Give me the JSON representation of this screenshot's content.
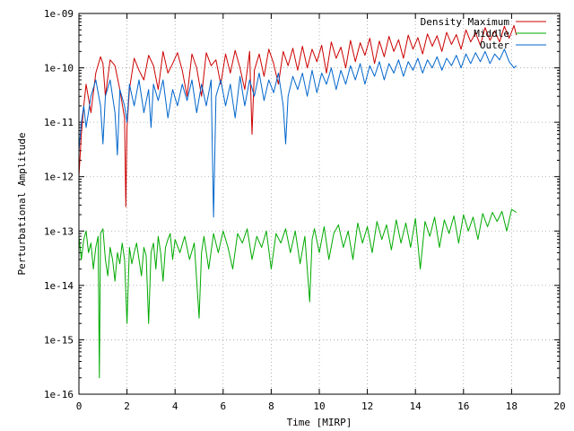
{
  "chart_data": {
    "type": "line",
    "title": "",
    "xlabel": "Time [MIRP]",
    "ylabel": "Perturbational Amplitude",
    "xlim": [
      0,
      20
    ],
    "ylim": [
      1e-16,
      1e-09
    ],
    "yscale": "log",
    "grid": true,
    "legend_position": "top-right",
    "x_ticks": [
      0,
      2,
      4,
      6,
      8,
      10,
      12,
      14,
      16,
      18,
      20
    ],
    "x_tick_labels": [
      "0",
      "2",
      "4",
      "6",
      "8",
      "10",
      "12",
      "14",
      "16",
      "18",
      "20"
    ],
    "y_ticks": [
      1e-16,
      1e-15,
      1e-14,
      1e-13,
      1e-12,
      1e-11,
      1e-10,
      1e-09
    ],
    "y_tick_labels": [
      "1e-16",
      "1e-15",
      "1e-14",
      "1e-13",
      "1e-12",
      "1e-11",
      "1e-10",
      "1e-09"
    ],
    "series": [
      {
        "name": "Density Maximum",
        "color": "#cc0000",
        "x": [
          0.0,
          0.1,
          0.2,
          0.3,
          0.5,
          0.7,
          0.9,
          1.0,
          1.1,
          1.3,
          1.5,
          1.7,
          1.9,
          1.95,
          2.0,
          2.1,
          2.3,
          2.5,
          2.7,
          2.9,
          3.1,
          3.3,
          3.5,
          3.7,
          3.9,
          4.1,
          4.3,
          4.5,
          4.7,
          4.9,
          5.1,
          5.3,
          5.5,
          5.7,
          5.9,
          6.1,
          6.3,
          6.5,
          6.7,
          6.9,
          7.1,
          7.2,
          7.3,
          7.5,
          7.7,
          7.9,
          8.1,
          8.3,
          8.5,
          8.7,
          8.9,
          9.1,
          9.3,
          9.5,
          9.7,
          9.9,
          10.1,
          10.3,
          10.5,
          10.7,
          10.9,
          11.1,
          11.3,
          11.5,
          11.7,
          11.9,
          12.1,
          12.3,
          12.5,
          12.7,
          12.9,
          13.1,
          13.3,
          13.5,
          13.7,
          13.9,
          14.1,
          14.3,
          14.5,
          14.7,
          14.9,
          15.1,
          15.3,
          15.5,
          15.7,
          15.9,
          16.1,
          16.3,
          16.5,
          16.7,
          16.9,
          17.1,
          17.3,
          17.5,
          17.7,
          17.9,
          18.1,
          18.2
        ],
        "values": [
          1e-12,
          6e-12,
          2e-11,
          5e-11,
          1.5e-11,
          8e-11,
          1.6e-10,
          1.2e-10,
          3e-11,
          1.4e-10,
          1.1e-10,
          4e-11,
          1.2e-11,
          2.8e-13,
          8e-12,
          4e-11,
          1.5e-10,
          9e-11,
          6e-11,
          1.7e-10,
          1.1e-10,
          4e-11,
          2e-10,
          8e-11,
          1.2e-10,
          1.9e-10,
          9e-11,
          3e-11,
          1.8e-10,
          1e-10,
          3e-11,
          1.9e-10,
          1.1e-10,
          1.4e-10,
          5e-11,
          1.8e-10,
          8e-11,
          2.1e-10,
          1e-10,
          4e-11,
          2e-10,
          6e-12,
          9e-11,
          1.8e-10,
          7e-11,
          2.2e-10,
          1.2e-10,
          5e-11,
          2e-10,
          1.1e-10,
          2.3e-10,
          9e-11,
          2.5e-10,
          1e-10,
          2.2e-10,
          1.3e-10,
          2.6e-10,
          8e-11,
          3e-10,
          1.5e-10,
          2.4e-10,
          1e-10,
          3.2e-10,
          1.3e-10,
          2.9e-10,
          1.7e-10,
          3.5e-10,
          1.2e-10,
          3.1e-10,
          1.6e-10,
          3.8e-10,
          2e-10,
          3.3e-10,
          1.5e-10,
          4e-10,
          2.2e-10,
          3.6e-10,
          1.8e-10,
          4.2e-10,
          2.5e-10,
          3.9e-10,
          2e-10,
          4.5e-10,
          2.7e-10,
          4.1e-10,
          2.2e-10,
          5e-10,
          3e-10,
          4.4e-10,
          2.6e-10,
          5.5e-10,
          3.2e-10,
          4.8e-10,
          3e-10,
          5.8e-10,
          3.5e-10,
          6e-10,
          4e-10
        ]
      },
      {
        "name": "Middle",
        "color": "#00aa00",
        "x": [
          0.0,
          0.1,
          0.2,
          0.3,
          0.4,
          0.5,
          0.6,
          0.7,
          0.8,
          0.85,
          0.9,
          1.0,
          1.1,
          1.2,
          1.3,
          1.4,
          1.5,
          1.6,
          1.7,
          1.8,
          1.9,
          2.0,
          2.1,
          2.2,
          2.3,
          2.4,
          2.5,
          2.6,
          2.7,
          2.8,
          2.9,
          3.0,
          3.1,
          3.2,
          3.3,
          3.4,
          3.5,
          3.6,
          3.7,
          3.8,
          3.9,
          4.0,
          4.2,
          4.4,
          4.6,
          4.8,
          5.0,
          5.1,
          5.2,
          5.4,
          5.6,
          5.8,
          6.0,
          6.2,
          6.4,
          6.6,
          6.8,
          7.0,
          7.2,
          7.4,
          7.6,
          7.8,
          8.0,
          8.2,
          8.4,
          8.6,
          8.8,
          9.0,
          9.2,
          9.4,
          9.6,
          9.7,
          9.8,
          10.0,
          10.2,
          10.4,
          10.6,
          10.8,
          11.0,
          11.2,
          11.4,
          11.6,
          11.8,
          12.0,
          12.2,
          12.4,
          12.6,
          12.8,
          13.0,
          13.2,
          13.4,
          13.6,
          13.8,
          14.0,
          14.2,
          14.4,
          14.6,
          14.8,
          15.0,
          15.2,
          15.4,
          15.6,
          15.8,
          16.0,
          16.2,
          16.4,
          16.6,
          16.8,
          17.0,
          17.2,
          17.4,
          17.6,
          17.8,
          18.0,
          18.2
        ],
        "values": [
          8e-14,
          3e-14,
          7e-14,
          1e-13,
          4e-14,
          6e-14,
          2e-14,
          5e-14,
          8e-14,
          2e-16,
          9e-14,
          1.1e-13,
          3e-14,
          1.5e-14,
          5e-14,
          3e-14,
          1.2e-14,
          4e-14,
          2.5e-14,
          6e-14,
          3e-14,
          2e-15,
          5e-14,
          2.5e-14,
          4e-14,
          6e-14,
          3e-14,
          1.5e-14,
          5e-14,
          3.5e-14,
          2e-15,
          4e-14,
          6e-14,
          2e-14,
          8e-14,
          4e-14,
          1.2e-14,
          5e-14,
          7e-14,
          9e-14,
          3e-14,
          7e-14,
          4e-14,
          8e-14,
          3e-14,
          6e-14,
          2.5e-15,
          4e-14,
          8e-14,
          2e-14,
          9e-14,
          4e-14,
          1e-13,
          5e-14,
          2e-14,
          9e-14,
          6e-14,
          1.1e-13,
          3e-14,
          8e-14,
          5e-14,
          1e-13,
          2e-14,
          9e-14,
          6e-14,
          1.1e-13,
          4e-14,
          1e-13,
          2.5e-14,
          8e-14,
          5e-15,
          7e-14,
          1.1e-13,
          4e-14,
          1.2e-13,
          3e-14,
          9e-14,
          1.3e-13,
          5e-14,
          1e-13,
          3e-14,
          1.4e-13,
          6e-14,
          1.2e-13,
          4e-14,
          1.5e-13,
          7e-14,
          1.3e-13,
          4.5e-14,
          1.6e-13,
          6e-14,
          1.4e-13,
          5e-14,
          1.7e-13,
          2e-14,
          1.5e-13,
          8e-14,
          1.8e-13,
          5e-14,
          1.6e-13,
          9e-14,
          1.9e-13,
          6e-14,
          2e-13,
          1e-13,
          1.8e-13,
          7e-14,
          2.1e-13,
          1.2e-13,
          2.2e-13,
          1.5e-13,
          2.3e-13,
          1e-13,
          2.5e-13,
          2.2e-13
        ]
      },
      {
        "name": "Outer",
        "color": "#0066cc",
        "x": [
          0.0,
          0.1,
          0.2,
          0.3,
          0.5,
          0.7,
          0.9,
          1.0,
          1.1,
          1.3,
          1.5,
          1.6,
          1.7,
          1.9,
          2.0,
          2.1,
          2.3,
          2.5,
          2.7,
          2.9,
          3.0,
          3.1,
          3.3,
          3.5,
          3.7,
          3.9,
          4.1,
          4.3,
          4.5,
          4.7,
          4.9,
          5.1,
          5.3,
          5.5,
          5.6,
          5.7,
          5.9,
          6.1,
          6.3,
          6.5,
          6.7,
          6.9,
          7.1,
          7.3,
          7.5,
          7.7,
          7.9,
          8.1,
          8.3,
          8.5,
          8.6,
          8.7,
          8.9,
          9.1,
          9.3,
          9.5,
          9.7,
          9.9,
          10.1,
          10.3,
          10.5,
          10.7,
          10.9,
          11.1,
          11.3,
          11.5,
          11.7,
          11.9,
          12.1,
          12.3,
          12.5,
          12.7,
          12.9,
          13.1,
          13.3,
          13.5,
          13.7,
          13.9,
          14.1,
          14.3,
          14.5,
          14.7,
          14.9,
          15.1,
          15.3,
          15.5,
          15.7,
          15.9,
          16.1,
          16.3,
          16.5,
          16.7,
          16.9,
          17.1,
          17.3,
          17.5,
          17.7,
          17.9,
          18.1,
          18.2
        ],
        "values": [
          3e-12,
          1e-11,
          2e-11,
          8e-12,
          3e-11,
          6e-11,
          2e-11,
          4e-12,
          3e-11,
          6e-11,
          1.5e-11,
          2.5e-12,
          4e-11,
          2e-11,
          1e-11,
          5e-11,
          2e-11,
          6e-11,
          1.5e-11,
          4e-11,
          8e-12,
          5e-11,
          2.5e-11,
          6e-11,
          1.2e-11,
          4e-11,
          2e-11,
          5e-11,
          2.5e-11,
          6e-11,
          1.5e-11,
          5e-11,
          2e-11,
          6e-11,
          1.8e-13,
          3e-11,
          6e-11,
          2e-11,
          5e-11,
          1.2e-11,
          7e-11,
          2e-11,
          6e-11,
          3e-11,
          8e-11,
          2.5e-11,
          6e-11,
          3.5e-11,
          8e-11,
          2e-11,
          4e-12,
          3e-11,
          7e-11,
          4e-11,
          8e-11,
          3e-11,
          9e-11,
          3.5e-11,
          8e-11,
          5e-11,
          1e-10,
          4e-11,
          9e-11,
          5e-11,
          1.1e-10,
          6e-11,
          1.2e-10,
          5e-11,
          1.1e-10,
          7e-11,
          1.3e-10,
          6e-11,
          1.2e-10,
          8e-11,
          1.4e-10,
          7e-11,
          1.3e-10,
          9e-11,
          1.5e-10,
          8e-11,
          1.4e-10,
          1e-10,
          1.6e-10,
          9e-11,
          1.5e-10,
          1.1e-10,
          1.7e-10,
          1e-10,
          1.8e-10,
          1.2e-10,
          1.9e-10,
          1.3e-10,
          2e-10,
          1.2e-10,
          1.8e-10,
          1.4e-10,
          2.2e-10,
          1.3e-10,
          1e-10,
          1.1e-10
        ]
      }
    ]
  }
}
